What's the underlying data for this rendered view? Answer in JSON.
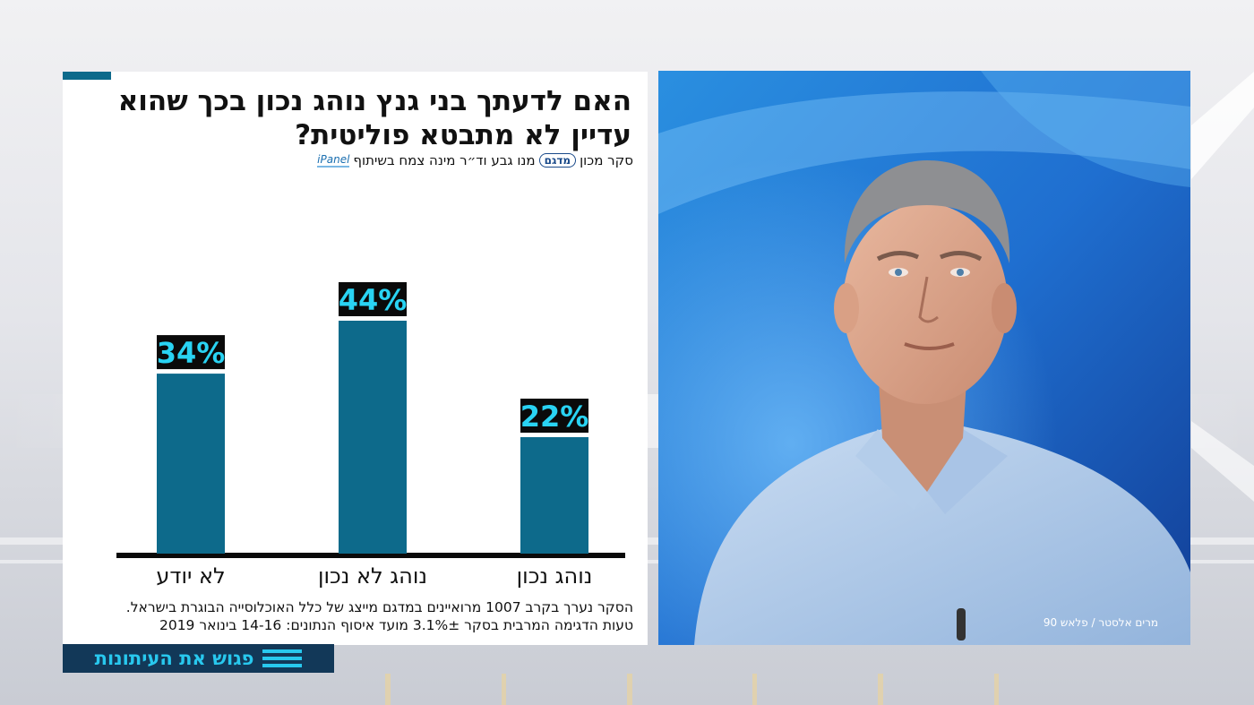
{
  "chart_data": {
    "type": "bar",
    "title": "האם לדעתך בני גנץ נוהג נכון  בכך שהוא עדיין לא מתבטא פוליטית?",
    "categories": [
      "לא יודע",
      "נוהג לא נכון",
      "נוהג נכון"
    ],
    "values": [
      34,
      44,
      22
    ],
    "data_labels": [
      "34%",
      "44%",
      "22%"
    ],
    "ylim": [
      0,
      50
    ],
    "grid": false,
    "bar_color": "#0d6a8b",
    "label_bg": "#0a0a0a",
    "label_color": "#29d3f3"
  },
  "panel": {
    "title_line1": "האם לדעתך בני גנץ נוהג נכון  בכך שהוא",
    "title_line2": "עדיין לא מתבטא פוליטית?",
    "subtitle_part1": "סקר מכון",
    "logo_madgam": "מדגם",
    "subtitle_part2": "מנו גבע וד״ר מינה צמח בשיתוף",
    "logo_ipanel": "iPanel",
    "footnote_line1": "הסקר נערך בקרב 1007 מרואיינים במדגם מייצג של כלל האוכלוסייה הבוגרת בישראל.",
    "footnote_line2": "טעות הדגימה המרבית בסקר 3.1%± מועד איסוף הנתונים: 14-16 בינואר 2019"
  },
  "photo": {
    "credit": "מרים אלסטר / פלאש 90"
  },
  "ticker": {
    "label": "פגוש את העיתונות"
  },
  "colors": {
    "accent": "#0d6a8b",
    "ticker_bg": "#123858",
    "ticker_text": "#28c8ee"
  }
}
